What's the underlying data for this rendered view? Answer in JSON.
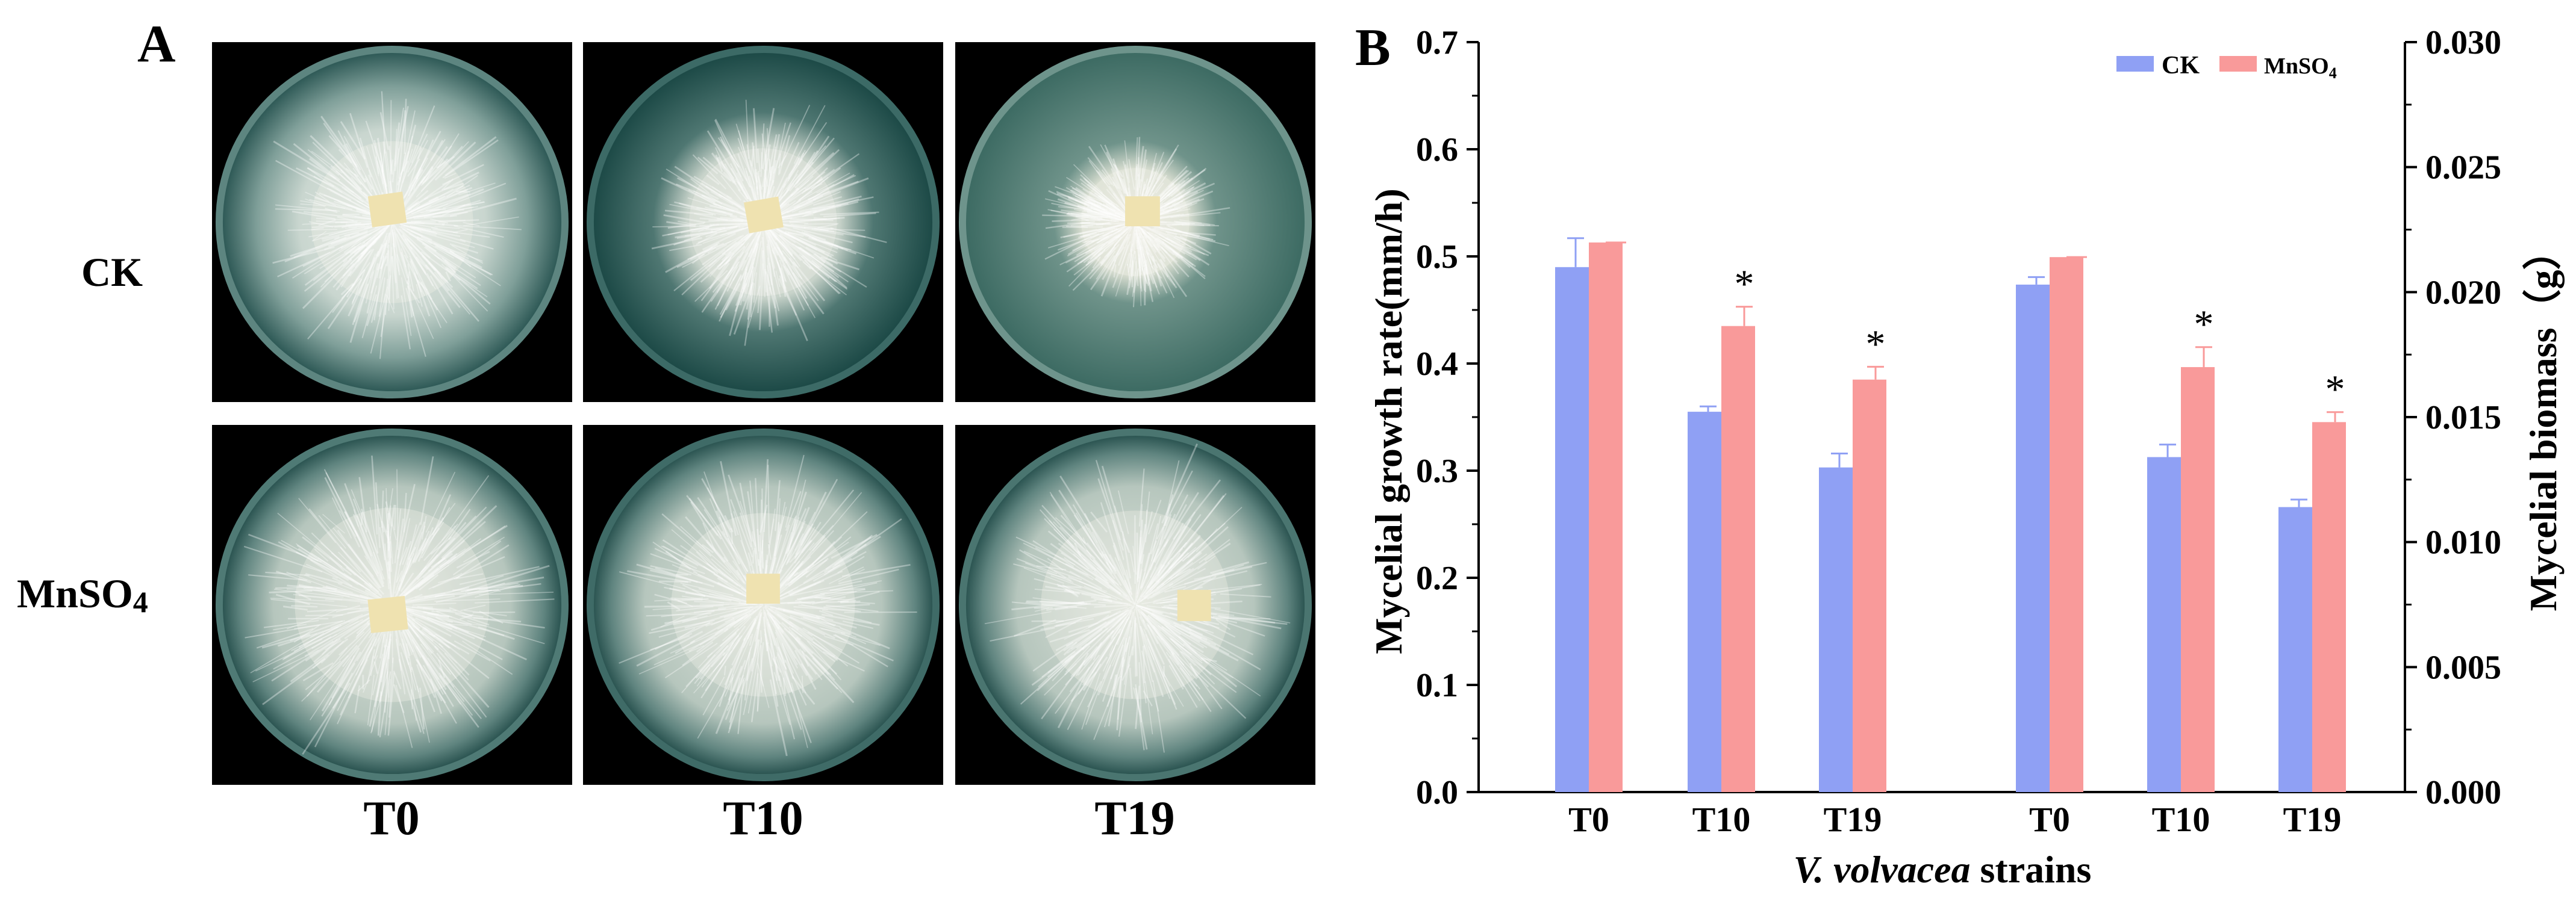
{
  "panel_a": {
    "letter": "A",
    "row_labels": {
      "ck": "CK",
      "mn_main": "MnSO",
      "mn_sub": "4"
    },
    "col_labels": [
      "T0",
      "T10",
      "T19"
    ]
  },
  "panel_b": {
    "letter": "B"
  },
  "chart_data": {
    "type": "bar",
    "categories": [
      "T0",
      "T10",
      "T19",
      "T0",
      "T10",
      "T19"
    ],
    "category_groups": [
      {
        "axis": "left",
        "categories": [
          "T0",
          "T10",
          "T19"
        ]
      },
      {
        "axis": "right",
        "categories": [
          "T0",
          "T10",
          "T19"
        ]
      }
    ],
    "series": [
      {
        "name": "CK",
        "color": "#8FA0F4",
        "values_left": [
          0.49,
          0.355,
          0.303
        ],
        "errors_left": [
          0.027,
          0.005,
          0.013
        ],
        "values_right": [
          0.0203,
          0.0134,
          0.0114
        ],
        "errors_right": [
          0.0003,
          0.0005,
          0.0003
        ]
      },
      {
        "name": "MnSO4",
        "legend_main": "MnSO",
        "legend_sub": "4",
        "color": "#F99A9A",
        "values_left": [
          0.513,
          0.435,
          0.385
        ],
        "errors_left": [
          0.0,
          0.018,
          0.012
        ],
        "values_right": [
          0.0214,
          0.017,
          0.0148
        ],
        "errors_right": [
          0.0,
          0.0008,
          0.0004
        ]
      }
    ],
    "significance": [
      {
        "axis": "left",
        "category_index": 1,
        "series": "MnSO4",
        "label": "*"
      },
      {
        "axis": "left",
        "category_index": 2,
        "series": "MnSO4",
        "label": "*"
      },
      {
        "axis": "right",
        "category_index": 1,
        "series": "MnSO4",
        "label": "*"
      },
      {
        "axis": "right",
        "category_index": 2,
        "series": "MnSO4",
        "label": "*"
      }
    ],
    "xlabel_italic": "V. volvacea",
    "xlabel_rest": " strains",
    "ylabel": "Mycelial growth rate(mm/h)",
    "y2label": "Mycelial biomass（g）",
    "ylim": [
      0.0,
      0.7
    ],
    "y2lim": [
      0.0,
      0.03
    ],
    "yticks": [
      "0.0",
      "0.1",
      "0.2",
      "0.3",
      "0.4",
      "0.5",
      "0.6",
      "0.7"
    ],
    "y2ticks": [
      "0.000",
      "0.005",
      "0.010",
      "0.015",
      "0.020",
      "0.025",
      "0.030"
    ],
    "legend_position": "top-right",
    "grid": false
  }
}
